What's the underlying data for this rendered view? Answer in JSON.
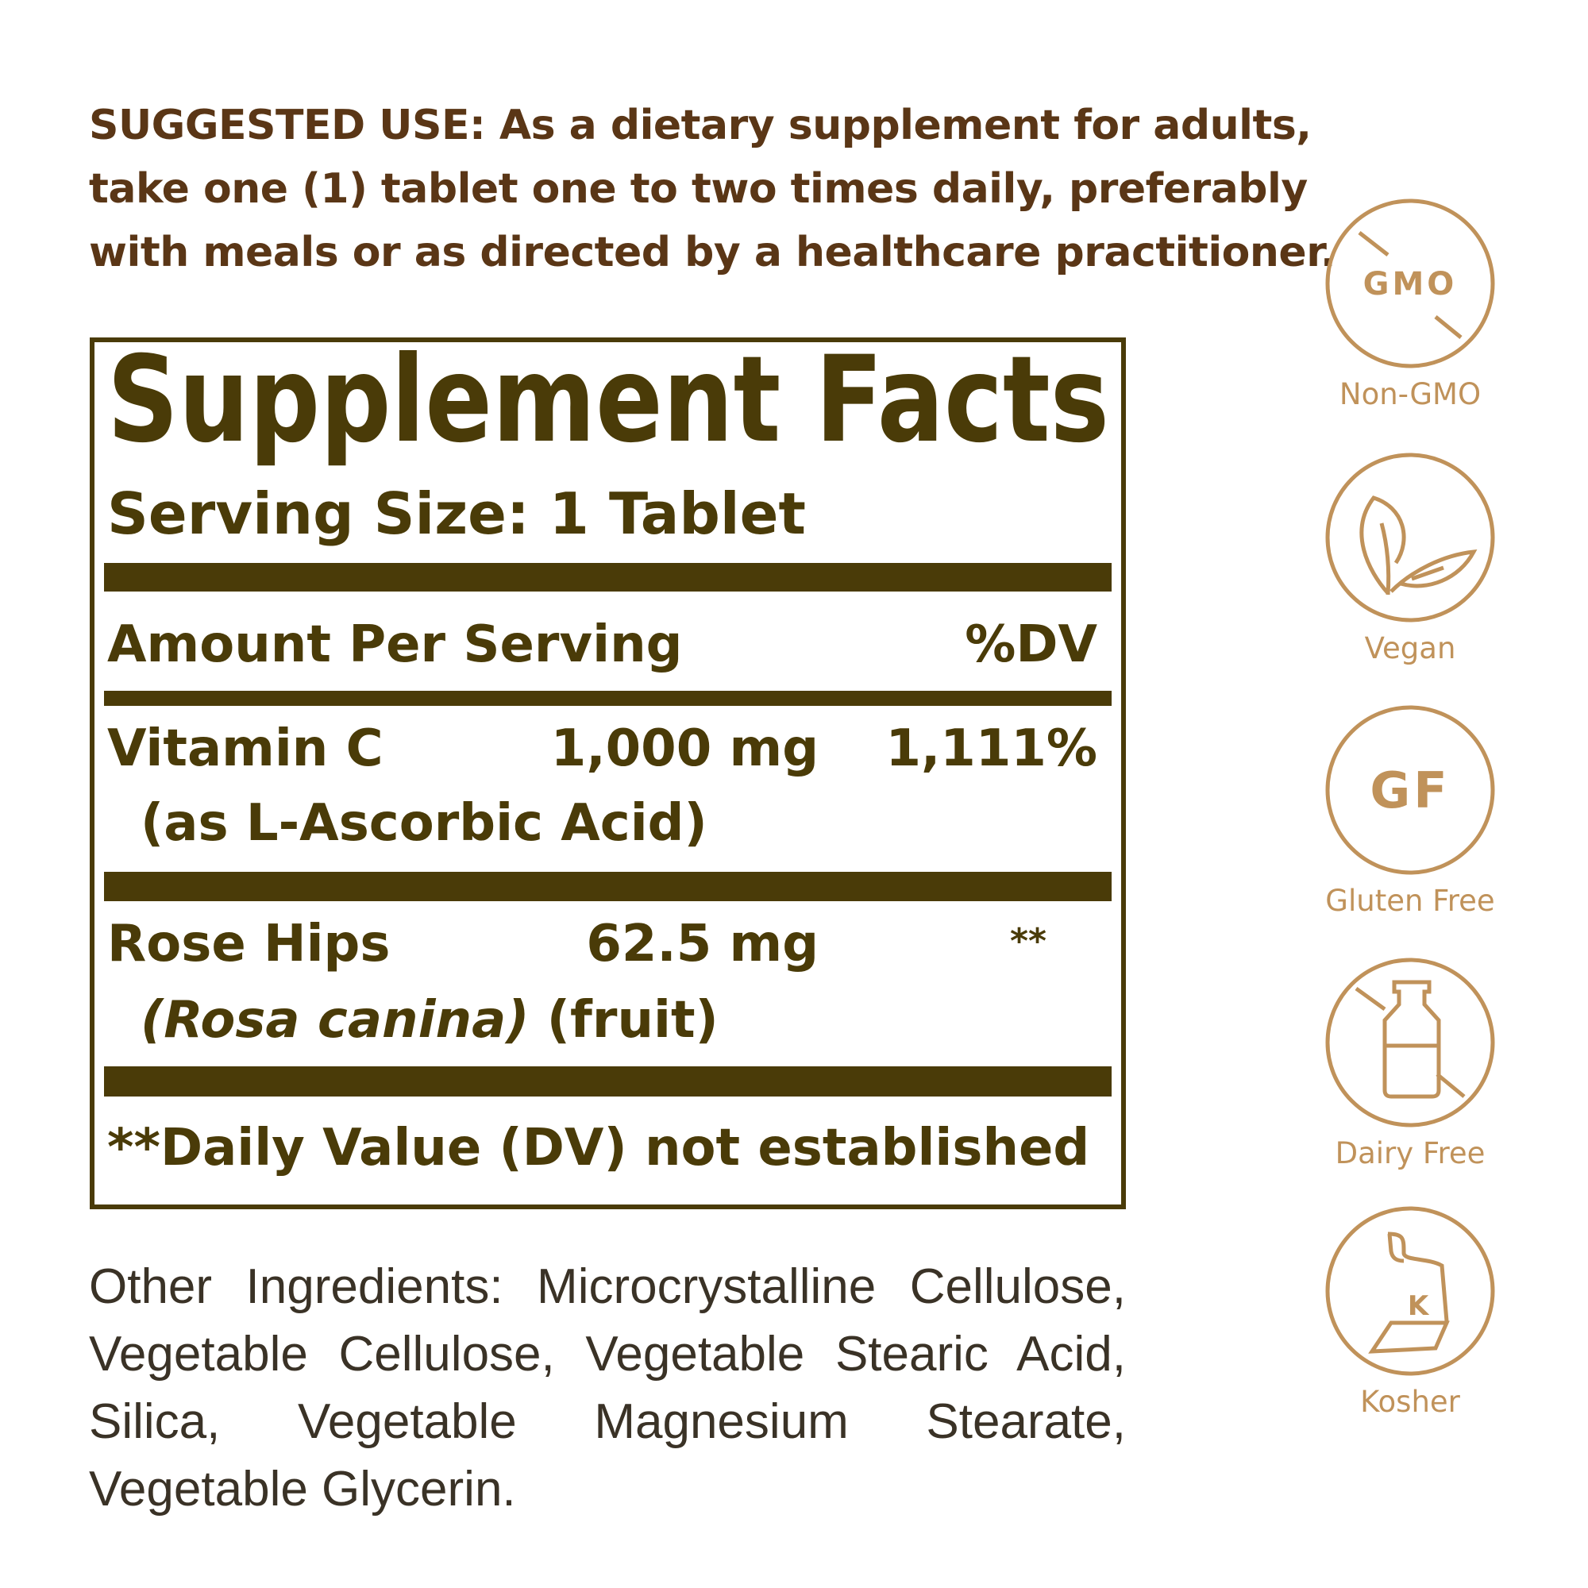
{
  "suggested_use": {
    "lines": [
      "SUGGESTED USE: As a dietary supplement for adults,",
      "take one (1) tablet one to two times daily, preferably",
      "with meals or as directed by a healthcare practitioner."
    ]
  },
  "facts": {
    "title": "Supplement Facts",
    "serving_size": "Serving Size: 1 Tablet",
    "amount_header": "Amount Per Serving",
    "dv_header": "%DV",
    "rows": [
      {
        "name": "Vitamin C",
        "amount": "1,000 mg",
        "dv": "1,111%",
        "sub": "(as L-Ascorbic Acid)"
      },
      {
        "name": "Rose Hips",
        "amount": "62.5 mg",
        "dv": "**",
        "sub_italic": "(Rosa canina)",
        "sub": " (fruit)"
      }
    ],
    "footnote": "**Daily Value (DV) not established"
  },
  "other_ingredients": "Other Ingredients: Microcrystalline Cellulose, Vegetable Cellulose, Vegetable Stearic Acid, Silica, Vegetable Magnesium Stearate, Vegetable Glycerin.",
  "badges": [
    {
      "icon": "gmo-crossed-icon",
      "icon_text": "GMO",
      "label": "Non-GMO"
    },
    {
      "icon": "leaf-icon",
      "label": "Vegan"
    },
    {
      "icon": "gf-icon",
      "icon_text": "GF",
      "label": "Gluten Free"
    },
    {
      "icon": "milk-bottle-crossed-icon",
      "label": "Dairy Free"
    },
    {
      "icon": "kosher-icon",
      "icon_text": "K",
      "label": "Kosher"
    }
  ],
  "colors": {
    "text_brown": "#5a3616",
    "facts_olive": "#4a3b08",
    "badge_gold": "#c0925a"
  }
}
